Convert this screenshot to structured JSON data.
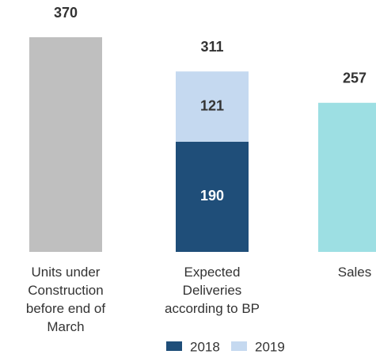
{
  "chart_data": {
    "type": "bar",
    "categories": [
      "Units under\nConstruction\nbefore end of\nMarch",
      "Expected\nDeliveries\naccording to BP",
      "Sales"
    ],
    "totals": [
      370,
      311,
      257
    ],
    "bar_colors": [
      "#bfbfbf",
      null,
      "#9ddfe3"
    ],
    "series": [
      {
        "name": "2018",
        "color": "#1f4e79",
        "values": [
          null,
          190,
          null
        ]
      },
      {
        "name": "2019",
        "color": "#c5d9f0",
        "values": [
          null,
          121,
          null
        ]
      }
    ]
  }
}
